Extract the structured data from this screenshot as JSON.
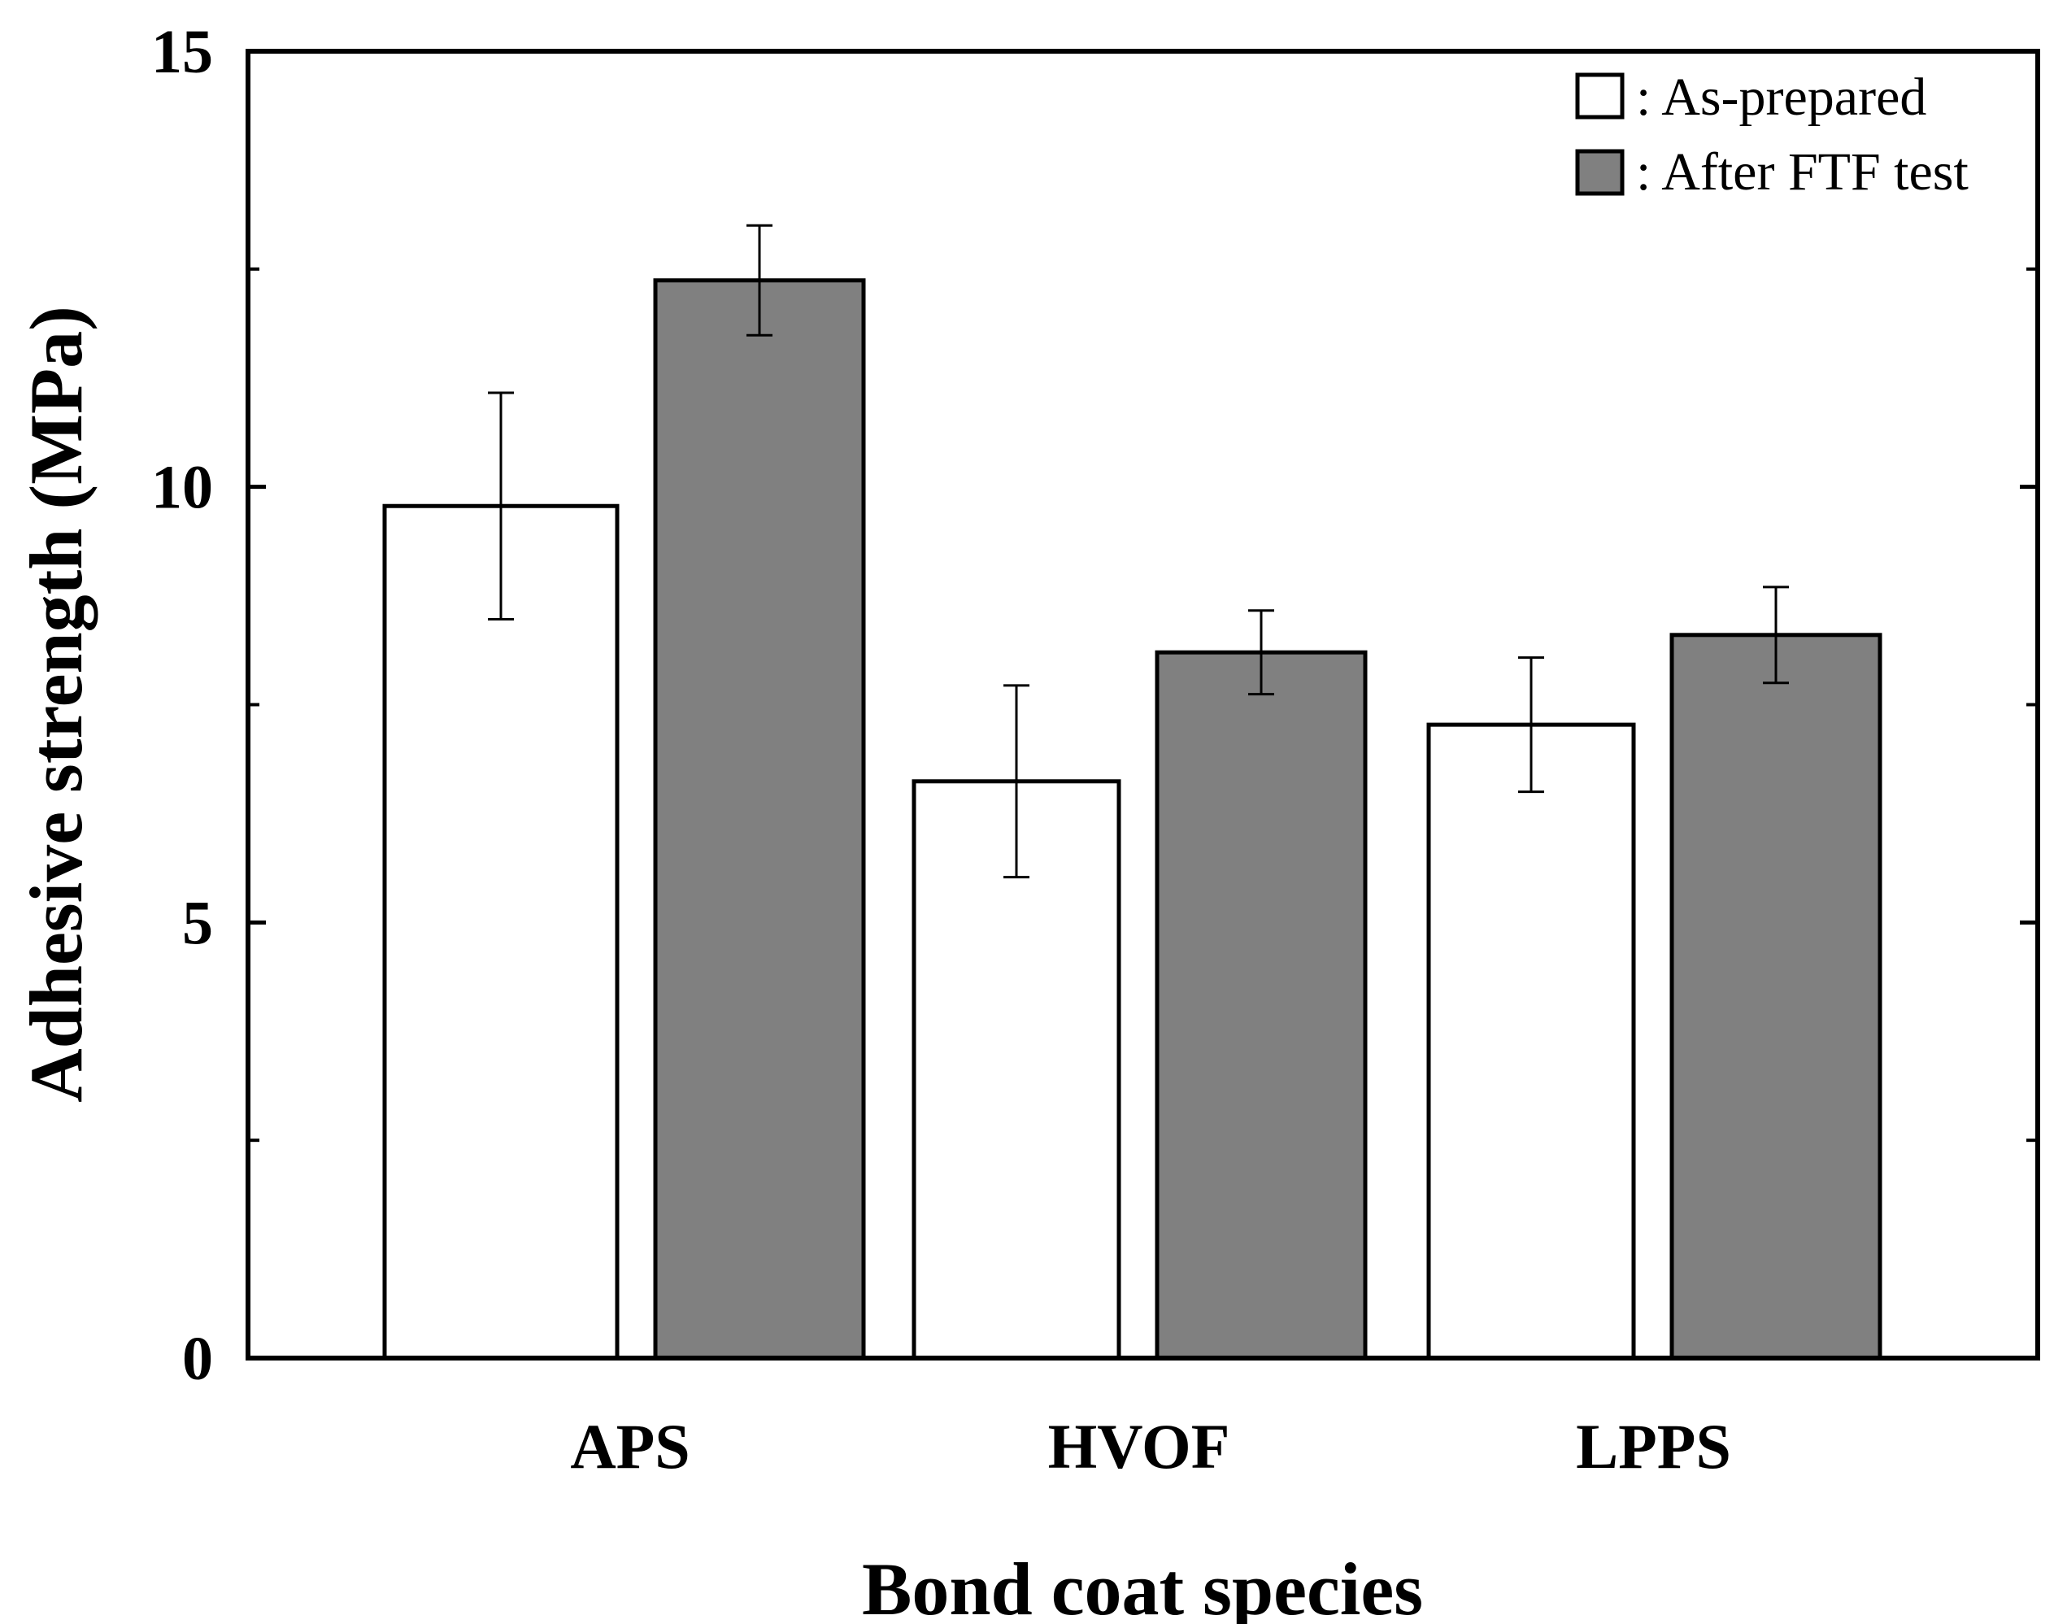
{
  "chart_data": {
    "type": "bar",
    "title": "",
    "xlabel": "Bond coat species",
    "ylabel": "Adhesive strength (MPa)",
    "ylim": [
      0,
      15
    ],
    "yticks": [
      0,
      5,
      10,
      15
    ],
    "yticks_minor": [
      2.5,
      7.5,
      12.5
    ],
    "grid": false,
    "legend_position": "top-right",
    "categories": [
      "APS",
      "HVOF",
      "LPPS"
    ],
    "series": [
      {
        "name": ": As-prepared",
        "color": "#ffffff",
        "values": [
          9.78,
          6.62,
          7.27
        ],
        "errors": [
          1.3,
          1.1,
          0.77
        ]
      },
      {
        "name": ": After FTF test",
        "color": "#808080",
        "values": [
          12.37,
          8.1,
          8.3
        ],
        "errors": [
          0.63,
          0.48,
          0.55
        ]
      }
    ]
  }
}
